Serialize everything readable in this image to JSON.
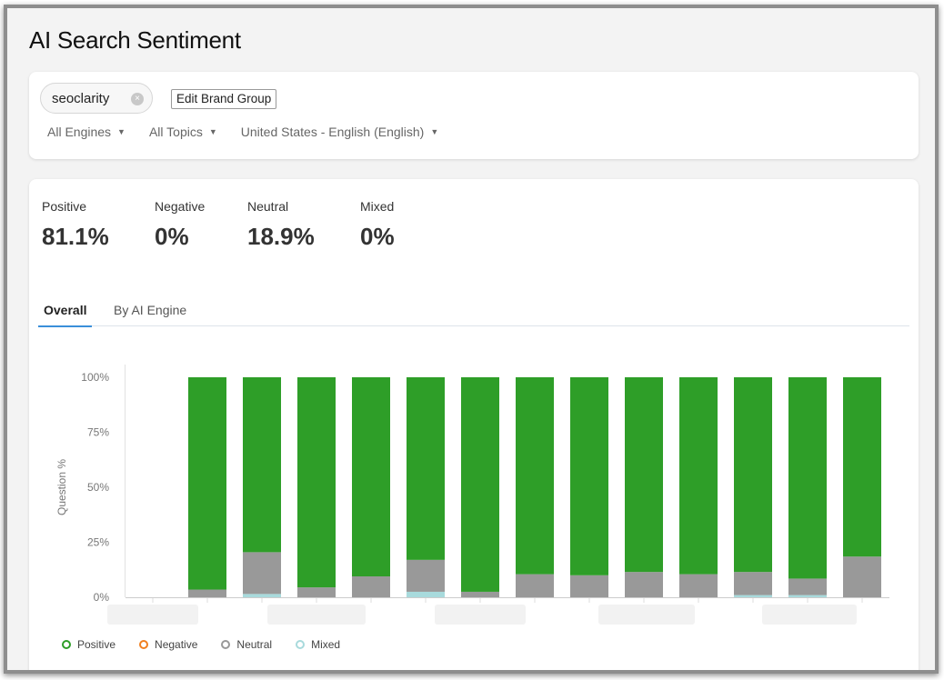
{
  "page": {
    "title": "AI Search Sentiment"
  },
  "filters": {
    "brand_chip": "seoclarity",
    "clear_glyph": "×",
    "edit_brand_label": "Edit Brand Group",
    "dropdowns": [
      {
        "label": "All Engines"
      },
      {
        "label": "All Topics"
      },
      {
        "label": "United States - English (English)"
      }
    ]
  },
  "metrics": [
    {
      "label": "Positive",
      "value": "81.1%"
    },
    {
      "label": "Negative",
      "value": "0%"
    },
    {
      "label": "Neutral",
      "value": "18.9%"
    },
    {
      "label": "Mixed",
      "value": "0%"
    }
  ],
  "tabs": [
    {
      "label": "Overall",
      "active": true
    },
    {
      "label": "By AI Engine",
      "active": false
    }
  ],
  "chart_data": {
    "type": "bar",
    "stacked": true,
    "ylabel": "Question %",
    "yticks": [
      "0%",
      "25%",
      "50%",
      "75%",
      "100%"
    ],
    "ylim": [
      0,
      100
    ],
    "grid": false,
    "legend_position": "bottom-left",
    "categories": [
      "",
      "",
      "",
      "",
      "",
      "",
      "",
      "",
      "",
      "",
      "",
      "",
      "",
      ""
    ],
    "series": [
      {
        "name": "Mixed",
        "color": "#a8dadc",
        "values": [
          0,
          0,
          1.5,
          0,
          0,
          2.5,
          0,
          0,
          0,
          0,
          0,
          1,
          1,
          0
        ]
      },
      {
        "name": "Neutral",
        "color": "#999999",
        "values": [
          0,
          3.5,
          19,
          4.5,
          9.5,
          14.5,
          2.5,
          10.5,
          10,
          11.5,
          10.5,
          10.5,
          7.5,
          18.5
        ]
      },
      {
        "name": "Negative",
        "color": "#f07f1f",
        "values": [
          0,
          0,
          0,
          0,
          0,
          0,
          0,
          0,
          0,
          0,
          0,
          0,
          0,
          0
        ]
      },
      {
        "name": "Positive",
        "color": "#2e9e28",
        "values": [
          0,
          96.5,
          79.5,
          95.5,
          90.5,
          83,
          97.5,
          89.5,
          90,
          88.5,
          89.5,
          88.5,
          91.5,
          81.5
        ]
      }
    ]
  },
  "legend": [
    {
      "name": "Positive",
      "color": "#2e9e28"
    },
    {
      "name": "Negative",
      "color": "#f07f1f"
    },
    {
      "name": "Neutral",
      "color": "#999999"
    },
    {
      "name": "Mixed",
      "color": "#a8dadc"
    }
  ]
}
